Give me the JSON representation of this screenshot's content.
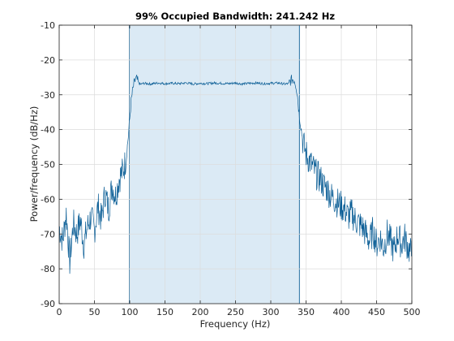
{
  "chart_data": {
    "type": "line",
    "title": "99% Occupied Bandwidth: 241.242 Hz",
    "xlabel": "Frequency (Hz)",
    "ylabel": "Power/frequency (dB/Hz)",
    "xlim": [
      0,
      500
    ],
    "ylim": [
      -90,
      -10
    ],
    "xticks": [
      0,
      50,
      100,
      150,
      200,
      250,
      300,
      350,
      400,
      450,
      500
    ],
    "yticks": [
      -90,
      -80,
      -70,
      -60,
      -50,
      -40,
      -30,
      -20,
      -10
    ],
    "grid": true,
    "occupied_band": {
      "low": 99.4,
      "high": 340.6
    },
    "colors": {
      "line": "#0b5e96",
      "band_fill": "#dbeaf5",
      "band_edge": "#0b5e96",
      "grid": "#dcdcdc",
      "axis": "#262626"
    },
    "series": [
      {
        "x": [
          0,
          5,
          10,
          15,
          20,
          25,
          30,
          35,
          40,
          45,
          50,
          55,
          60,
          65,
          70,
          75,
          80,
          85,
          90,
          93,
          96,
          98,
          100,
          102,
          104,
          106,
          108,
          110,
          112,
          115,
          120,
          130,
          140,
          150,
          160,
          170,
          180,
          190,
          200,
          210,
          220,
          230,
          240,
          250,
          260,
          270,
          280,
          290,
          300,
          310,
          320,
          325,
          328,
          330,
          332,
          334,
          336,
          338,
          340,
          342,
          344,
          346,
          350,
          355,
          360,
          365,
          370,
          375,
          380,
          385,
          390,
          395,
          400,
          405,
          410,
          415,
          420,
          425,
          430,
          435,
          440,
          445,
          450,
          455,
          460,
          465,
          470,
          475,
          480,
          485,
          490,
          495,
          500
        ],
        "y": [
          -68,
          -72,
          -64,
          -78,
          -67,
          -70,
          -66,
          -73,
          -68,
          -65,
          -69,
          -62,
          -66,
          -58,
          -63,
          -56,
          -59,
          -54,
          -52,
          -50,
          -46,
          -42,
          -37,
          -32,
          -29,
          -27,
          -25.6,
          -25.5,
          -26.5,
          -27.0,
          -26.7,
          -26.9,
          -26.6,
          -26.8,
          -26.7,
          -26.8,
          -26.6,
          -26.9,
          -26.7,
          -26.8,
          -26.6,
          -26.7,
          -26.8,
          -26.6,
          -26.9,
          -26.7,
          -26.6,
          -26.8,
          -26.7,
          -26.6,
          -26.9,
          -26.8,
          -26.0,
          -25.6,
          -25.5,
          -26.0,
          -27.5,
          -30.5,
          -35,
          -38,
          -41,
          -44,
          -47,
          -49,
          -51,
          -53,
          -54,
          -56,
          -57,
          -59,
          -60,
          -61,
          -62,
          -63,
          -65,
          -64,
          -66,
          -67,
          -68,
          -70,
          -72,
          -69,
          -73,
          -71,
          -74,
          -70,
          -72,
          -75,
          -70,
          -73,
          -71,
          -74,
          -76
        ]
      }
    ]
  }
}
